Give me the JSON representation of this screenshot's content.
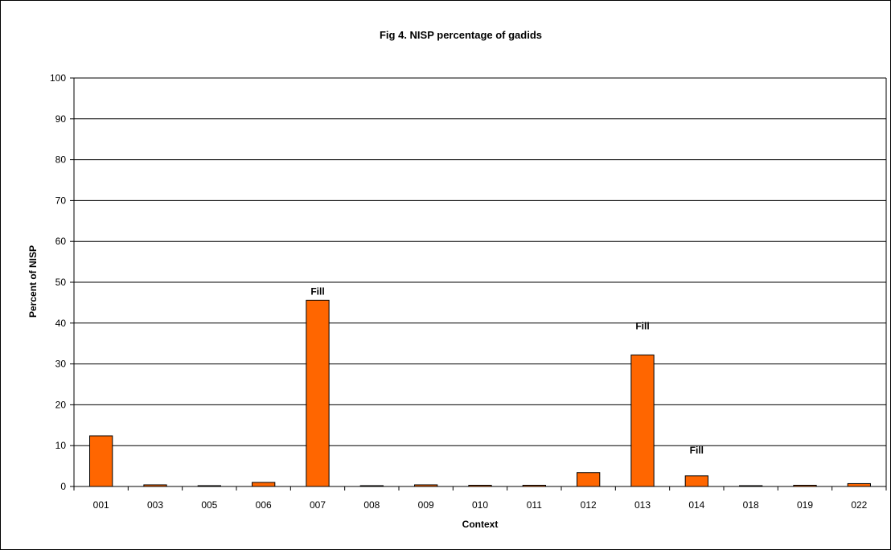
{
  "chart_data": {
    "type": "bar",
    "title": "Fig 4. NISP percentage of gadids",
    "xlabel": "Context",
    "ylabel": "Percent of NISP",
    "ylim": [
      0,
      100
    ],
    "yticks": [
      "0",
      "10",
      "20",
      "30",
      "40",
      "50",
      "60",
      "70",
      "80",
      "90",
      "100"
    ],
    "grid": true,
    "categories": [
      "001",
      "003",
      "005",
      "006",
      "007",
      "008",
      "009",
      "010",
      "011",
      "012",
      "013",
      "014",
      "018",
      "019",
      "022"
    ],
    "values": [
      12.4,
      0.4,
      0.2,
      1.0,
      45.6,
      0.2,
      0.4,
      0.3,
      0.3,
      3.4,
      32.2,
      2.6,
      0.2,
      0.3,
      0.7
    ],
    "bar_color": "#FF6600",
    "annotations": [
      {
        "category": "007",
        "text": "Fill"
      },
      {
        "category": "013",
        "text": "Fill"
      },
      {
        "category": "014",
        "text": "Fill"
      }
    ]
  }
}
